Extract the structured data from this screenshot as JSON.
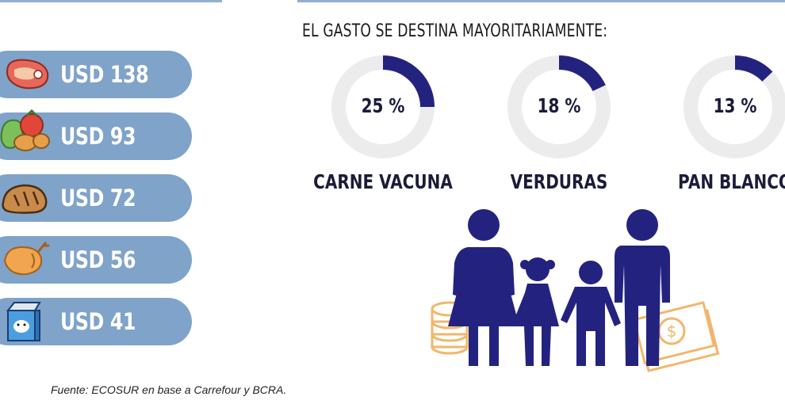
{
  "heading": "EL GASTO SE DESTINA MAYORITARIAMENTE:",
  "items": [
    {
      "icon": "steak-icon",
      "label": "USD 138"
    },
    {
      "icon": "vegetables-icon",
      "label": "USD 93"
    },
    {
      "icon": "bread-icon",
      "label": "USD 72"
    },
    {
      "icon": "chicken-icon",
      "label": "USD 56"
    },
    {
      "icon": "milk-carton-icon",
      "label": "USD 41"
    }
  ],
  "chart_data": {
    "type": "pie",
    "title": "EL GASTO SE DESTINA MAYORITARIAMENTE:",
    "categories": [
      "CARNE VACUNA",
      "VERDURAS",
      "PAN BLANCO"
    ],
    "values": [
      25,
      18,
      13
    ],
    "value_labels": [
      "25 %",
      "18 %",
      "13 %"
    ],
    "colors": {
      "fill": "#23237f",
      "track": "#ececec"
    }
  },
  "source": "Fuente: ECOSUR en base a Carrefour y BCRA.",
  "colors": {
    "pill": "#7fa3c9",
    "figure": "#23237f",
    "money": "#f2b66a"
  }
}
